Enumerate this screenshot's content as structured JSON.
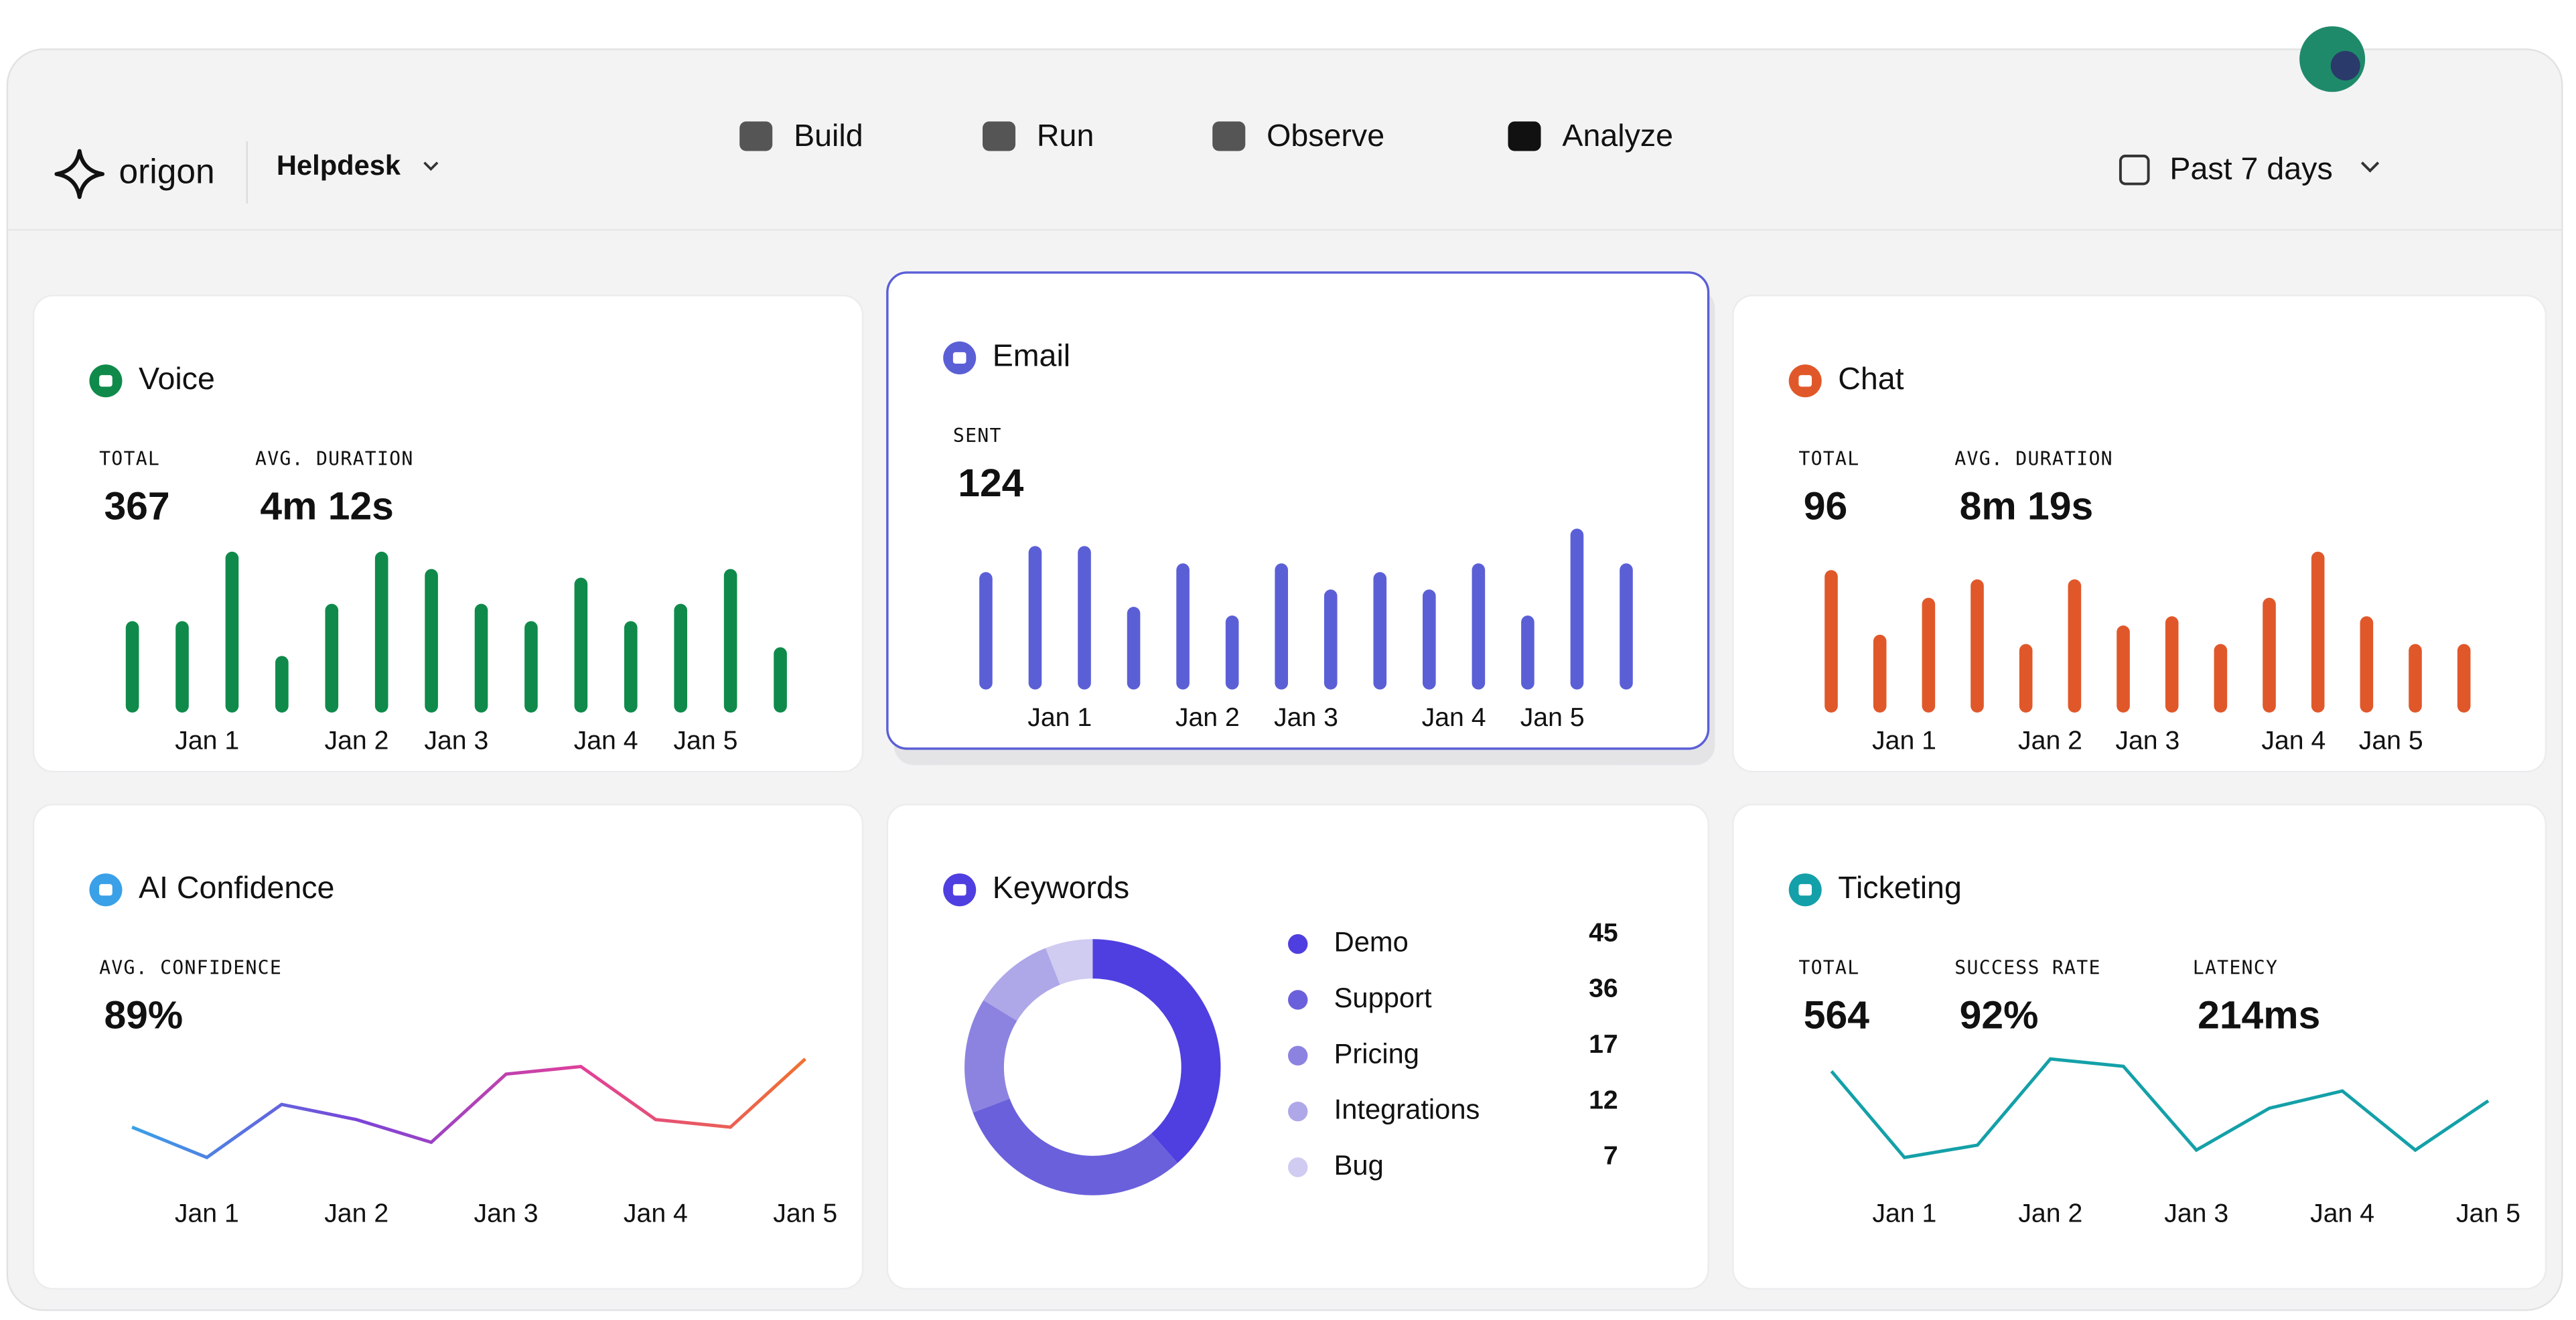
{
  "nav": {
    "brand": "origon",
    "workspace": "Helpdesk",
    "tabs": [
      "Build",
      "Run",
      "Observe",
      "Analyze"
    ],
    "date_range": "Past 7 days"
  },
  "cards": [
    {
      "title": "Voice",
      "stats": [
        {
          "label": "TOTAL",
          "value": "367"
        },
        {
          "label": "AVG. DURATION",
          "value": "4m 12s"
        }
      ],
      "chart": {
        "type": "bar",
        "color": "#0f8a4a",
        "categories": [
          null,
          "Jan 1",
          null,
          null,
          "Jan 2",
          null,
          "Jan 3",
          null,
          null,
          "Jan 4",
          null,
          "Jan 5",
          null,
          null
        ],
        "values": [
          45,
          45,
          85,
          25,
          55,
          85,
          75,
          55,
          45,
          70,
          45,
          55,
          75,
          30
        ]
      }
    },
    {
      "title": "Email",
      "stats": [
        {
          "label": "SENT",
          "value": "124"
        }
      ],
      "chart": {
        "type": "bar",
        "color": "#5b5fd6",
        "categories": [
          null,
          "Jan 1",
          null,
          null,
          "Jan 2",
          null,
          "Jan 3",
          null,
          null,
          "Jan 4",
          null,
          "Jan 5",
          null,
          null
        ],
        "values": [
          60,
          75,
          75,
          40,
          65,
          35,
          65,
          50,
          60,
          50,
          65,
          35,
          85,
          65
        ]
      }
    },
    {
      "title": "Chat",
      "stats": [
        {
          "label": "TOTAL",
          "value": "96"
        },
        {
          "label": "AVG. DURATION",
          "value": "8m 19s"
        }
      ],
      "chart": {
        "type": "bar",
        "color": "#e0582a",
        "categories": [
          null,
          "Jan 1",
          null,
          null,
          "Jan 2",
          null,
          "Jan 3",
          null,
          null,
          "Jan 4",
          null,
          "Jan 5",
          null,
          null
        ],
        "values": [
          70,
          35,
          55,
          65,
          30,
          65,
          40,
          45,
          30,
          55,
          80,
          45,
          30,
          30
        ]
      }
    },
    {
      "title": "AI Confidence",
      "stats": [
        {
          "label": "AVG. CONFIDENCE",
          "value": "89%"
        }
      ],
      "chart": {
        "type": "line",
        "colors": [
          "#3aa0e8",
          "#7a44d8",
          "#e0409a",
          "#f07030"
        ],
        "categories": [
          null,
          "Jan 1",
          null,
          "Jan 2",
          null,
          "Jan 3",
          null,
          "Jan 4",
          null,
          "Jan 5"
        ],
        "values": [
          84,
          80,
          87,
          85,
          82,
          91,
          92,
          85,
          84,
          93
        ]
      }
    },
    {
      "title": "Keywords",
      "chart": {
        "type": "donut",
        "categories": [
          "Demo",
          "Support",
          "Pricing",
          "Integrations",
          "Bug"
        ],
        "values": [
          45,
          36,
          17,
          12,
          7
        ],
        "colors": [
          "#4f3fe0",
          "#6b60db",
          "#8c83e0",
          "#aea7e8",
          "#cfcbf1"
        ]
      }
    },
    {
      "title": "Ticketing",
      "stats": [
        {
          "label": "TOTAL",
          "value": "564"
        },
        {
          "label": "SUCCESS RATE",
          "value": "92%"
        },
        {
          "label": "LATENCY",
          "value": "214ms"
        }
      ],
      "chart": {
        "type": "line",
        "color": "#14a0a8",
        "categories": [
          null,
          "Jan 1",
          null,
          "Jan 2",
          null,
          "Jan 3",
          null,
          "Jan 4",
          null,
          "Jan 5"
        ],
        "values": [
          70,
          35,
          40,
          75,
          72,
          38,
          55,
          62,
          38,
          58
        ]
      }
    }
  ]
}
